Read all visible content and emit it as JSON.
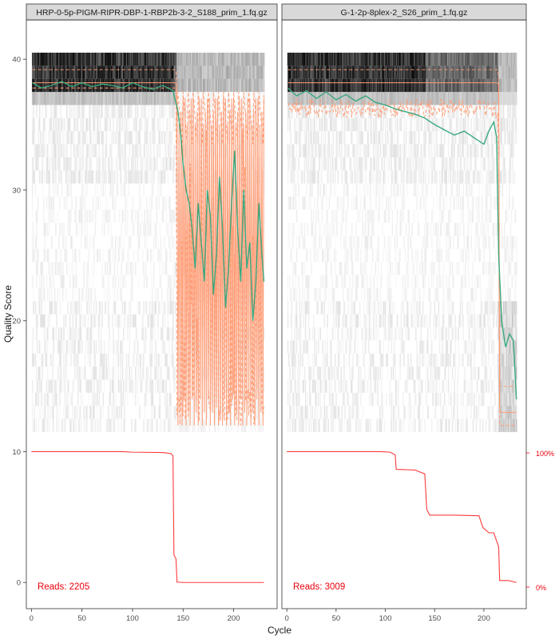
{
  "chart_data": {
    "type": "heatmap",
    "ylabel": "Quality Score",
    "xlabel": "Cycle",
    "x_ticks": [
      0,
      50,
      100,
      150,
      200
    ],
    "y_ticks": [
      0,
      10,
      20,
      30,
      40
    ],
    "xlim": [
      -5,
      243
    ],
    "ylim": [
      -2,
      43
    ],
    "right_axis_labels": [
      "100%",
      "0%"
    ],
    "colors": {
      "mean": "#3aa87e",
      "quartile": "#ff9a72",
      "reads": "#ff3b3b",
      "reads_text": "#e8000b",
      "strip": "#d9d9d9"
    },
    "panels": [
      {
        "title": "HRP-0-5p-PIGM-RIPR-DBP-1-RBP2b-3-2_S188_prim_1.fq.gz",
        "reads_label": "Reads:  2205",
        "read_length_cycles": 230,
        "mean_quality": [
          [
            1,
            38.2
          ],
          [
            10,
            37.8
          ],
          [
            20,
            38.0
          ],
          [
            30,
            38.3
          ],
          [
            40,
            37.9
          ],
          [
            50,
            38.2
          ],
          [
            60,
            37.9
          ],
          [
            70,
            38.1
          ],
          [
            80,
            38.0
          ],
          [
            90,
            37.8
          ],
          [
            100,
            38.2
          ],
          [
            110,
            37.9
          ],
          [
            120,
            37.7
          ],
          [
            130,
            38.0
          ],
          [
            140,
            37.6
          ],
          [
            145,
            36.0
          ],
          [
            148,
            34.0
          ],
          [
            150,
            32.0
          ],
          [
            153,
            30.0
          ],
          [
            156,
            29.0
          ],
          [
            159,
            27.0
          ],
          [
            162,
            24.0
          ],
          [
            165,
            29.0
          ],
          [
            168,
            26.0
          ],
          [
            171,
            23.0
          ],
          [
            174,
            30.0
          ],
          [
            177,
            28.0
          ],
          [
            180,
            22.0
          ],
          [
            183,
            25.0
          ],
          [
            186,
            31.0
          ],
          [
            189,
            27.0
          ],
          [
            192,
            21.0
          ],
          [
            195,
            24.0
          ],
          [
            198,
            29.0
          ],
          [
            201,
            33.0
          ],
          [
            204,
            27.0
          ],
          [
            207,
            23.0
          ],
          [
            210,
            30.0
          ],
          [
            213,
            24.0
          ],
          [
            216,
            26.0
          ],
          [
            219,
            20.0
          ],
          [
            222,
            23.0
          ],
          [
            225,
            29.0
          ],
          [
            228,
            25.0
          ],
          [
            230,
            23.0
          ]
        ],
        "reads_pct": [
          [
            0,
            100
          ],
          [
            90,
            100
          ],
          [
            100,
            99.6
          ],
          [
            130,
            99.3
          ],
          [
            138,
            98.6
          ],
          [
            140,
            96.8
          ],
          [
            141,
            21
          ],
          [
            143,
            18
          ],
          [
            144,
            0.3
          ],
          [
            150,
            0
          ],
          [
            230,
            0
          ]
        ]
      },
      {
        "title": "G-1-2p-8plex-2_S26_prim_1.fq.gz",
        "reads_label": "Reads:  3009",
        "read_length_cycles": 233,
        "mean_quality": [
          [
            1,
            37.8
          ],
          [
            10,
            37.2
          ],
          [
            20,
            37.6
          ],
          [
            30,
            37.0
          ],
          [
            40,
            37.5
          ],
          [
            50,
            36.9
          ],
          [
            60,
            37.3
          ],
          [
            70,
            36.8
          ],
          [
            80,
            37.2
          ],
          [
            90,
            36.7
          ],
          [
            100,
            36.5
          ],
          [
            110,
            36.2
          ],
          [
            120,
            36.0
          ],
          [
            130,
            35.8
          ],
          [
            140,
            35.5
          ],
          [
            150,
            35.0
          ],
          [
            160,
            34.6
          ],
          [
            170,
            34.2
          ],
          [
            180,
            34.5
          ],
          [
            190,
            34.0
          ],
          [
            200,
            33.5
          ],
          [
            205,
            34.5
          ],
          [
            210,
            35.2
          ],
          [
            213,
            34.0
          ],
          [
            215,
            25.0
          ],
          [
            218,
            20.0
          ],
          [
            222,
            18.0
          ],
          [
            226,
            19.0
          ],
          [
            230,
            18.5
          ],
          [
            233,
            14.0
          ]
        ],
        "reads_pct": [
          [
            0,
            100
          ],
          [
            95,
            100
          ],
          [
            105,
            99.6
          ],
          [
            110,
            97.5
          ],
          [
            111,
            86.5
          ],
          [
            130,
            86
          ],
          [
            140,
            83
          ],
          [
            142,
            56
          ],
          [
            145,
            51.5
          ],
          [
            170,
            51.5
          ],
          [
            195,
            51
          ],
          [
            199,
            42
          ],
          [
            205,
            38
          ],
          [
            210,
            38
          ],
          [
            215,
            27.3
          ],
          [
            216,
            1.5
          ],
          [
            225,
            1.5
          ],
          [
            233,
            0
          ]
        ]
      }
    ]
  }
}
